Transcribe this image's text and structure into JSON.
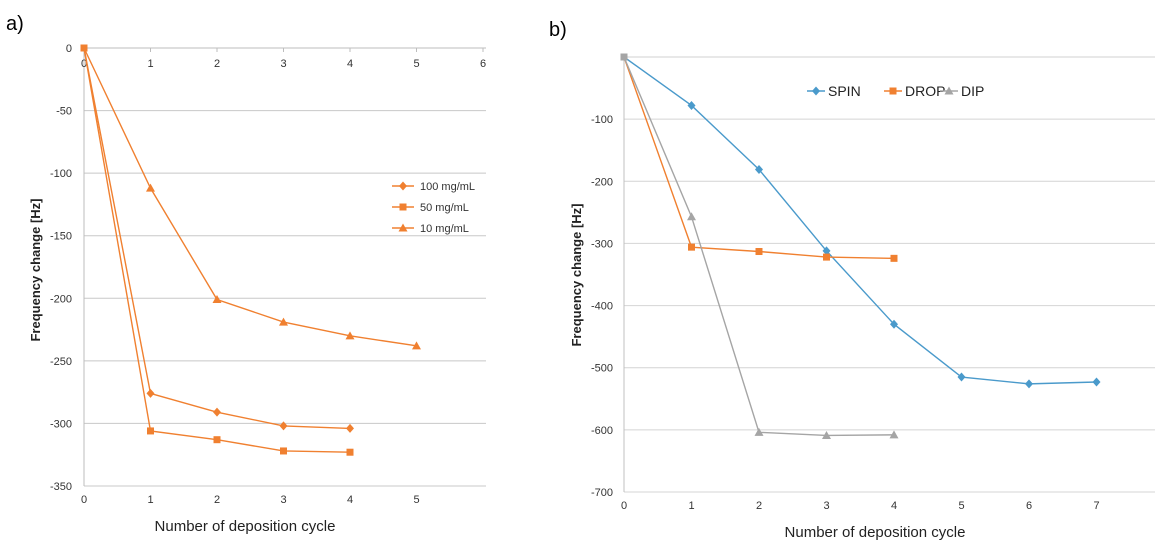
{
  "chart_data": [
    {
      "panel_label": "a)",
      "type": "line",
      "xlabel": "Number of deposition cycle",
      "ylabel": "Frequency change [Hz]",
      "xlim": [
        0,
        6
      ],
      "ylim": [
        -350,
        0
      ],
      "x_ticks_top": [
        "0",
        "1",
        "2",
        "3",
        "4",
        "5",
        "6"
      ],
      "x_ticks_bottom": [
        "0",
        "1",
        "2",
        "3",
        "4",
        "5"
      ],
      "y_ticks": [
        "0",
        "-50",
        "-100",
        "-150",
        "-200",
        "-250",
        "-300",
        "-350"
      ],
      "grid": "horizontal",
      "legend_position": "right",
      "series": [
        {
          "name": "100 mg/mL",
          "marker": "diamond",
          "color": "#f08030",
          "x": [
            0,
            1,
            2,
            3,
            4
          ],
          "y": [
            0,
            -276,
            -291,
            -302,
            -304
          ]
        },
        {
          "name": "50 mg/mL",
          "marker": "square",
          "color": "#f08030",
          "x": [
            0,
            1,
            2,
            3,
            4
          ],
          "y": [
            0,
            -306,
            -313,
            -322,
            -323
          ]
        },
        {
          "name": "10 mg/mL",
          "marker": "triangle",
          "color": "#f08030",
          "x": [
            0,
            1,
            2,
            3,
            4,
            5
          ],
          "y": [
            0,
            -112,
            -201,
            -219,
            -230,
            -238
          ]
        }
      ]
    },
    {
      "panel_label": "b)",
      "type": "line",
      "xlabel": "Number of deposition cycle",
      "ylabel": "Frequency change [Hz]",
      "xlim": [
        0,
        8
      ],
      "ylim": [
        -700,
        0
      ],
      "x_ticks": [
        "0",
        "1",
        "2",
        "3",
        "4",
        "5",
        "6",
        "7"
      ],
      "y_ticks": [
        "-100",
        "-200",
        "-300",
        "-400",
        "-500",
        "-600",
        "-700"
      ],
      "grid": "horizontal",
      "legend_position": "top",
      "series": [
        {
          "name": "SPIN",
          "marker": "diamond",
          "color": "#4a9acb",
          "x": [
            0,
            1,
            2,
            3,
            4,
            5,
            6,
            7
          ],
          "y": [
            0,
            -78,
            -181,
            -312,
            -430,
            -515,
            -526,
            -523
          ]
        },
        {
          "name": "DROP",
          "marker": "square",
          "color": "#f08030",
          "x": [
            0,
            1,
            2,
            3,
            4
          ],
          "y": [
            0,
            -306,
            -313,
            -322,
            -324
          ]
        },
        {
          "name": "DIP",
          "marker": "triangle",
          "color": "#a5a5a5",
          "x": [
            0,
            1,
            2,
            3,
            4
          ],
          "y": [
            0,
            -257,
            -604,
            -609,
            -608
          ]
        }
      ]
    }
  ]
}
